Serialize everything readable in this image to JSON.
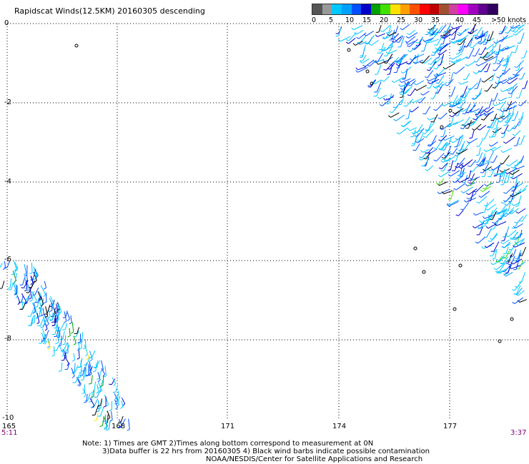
{
  "title": "Rapidscat Winds(12.5KM) 20160305 descending",
  "legend": {
    "colors": [
      "#555555",
      "#999999",
      "#00c8ff",
      "#00a0ff",
      "#0050ff",
      "#0000c8",
      "#00a000",
      "#40e000",
      "#ffe000",
      "#ffa000",
      "#ff5000",
      "#ff0000",
      "#c00000",
      "#a05030",
      "#d040a0",
      "#ff00ff",
      "#a000c0",
      "#600090",
      "#300060"
    ],
    "labels": [
      "0",
      "5",
      "10",
      "15",
      "20",
      "25",
      "30",
      "35",
      "40",
      "45",
      ">50 knots"
    ]
  },
  "axes": {
    "y_labels": [
      "0",
      "-2",
      "-4",
      "-6",
      "-8",
      "-10"
    ],
    "x_labels": [
      "165",
      "168",
      "171",
      "174",
      "177"
    ]
  },
  "times": {
    "left": "5:11",
    "right": "3:37"
  },
  "notes": {
    "line1": "Note: 1) Times are GMT 2)Times along bottom correspond to measurement at 0N",
    "line2": "3)Data buffer is 22 hrs from 20160305 4) Black wind barbs indicate possible contamination",
    "line3": "NOAA/NESDIS/Center for Satellite Applications and Research"
  }
}
